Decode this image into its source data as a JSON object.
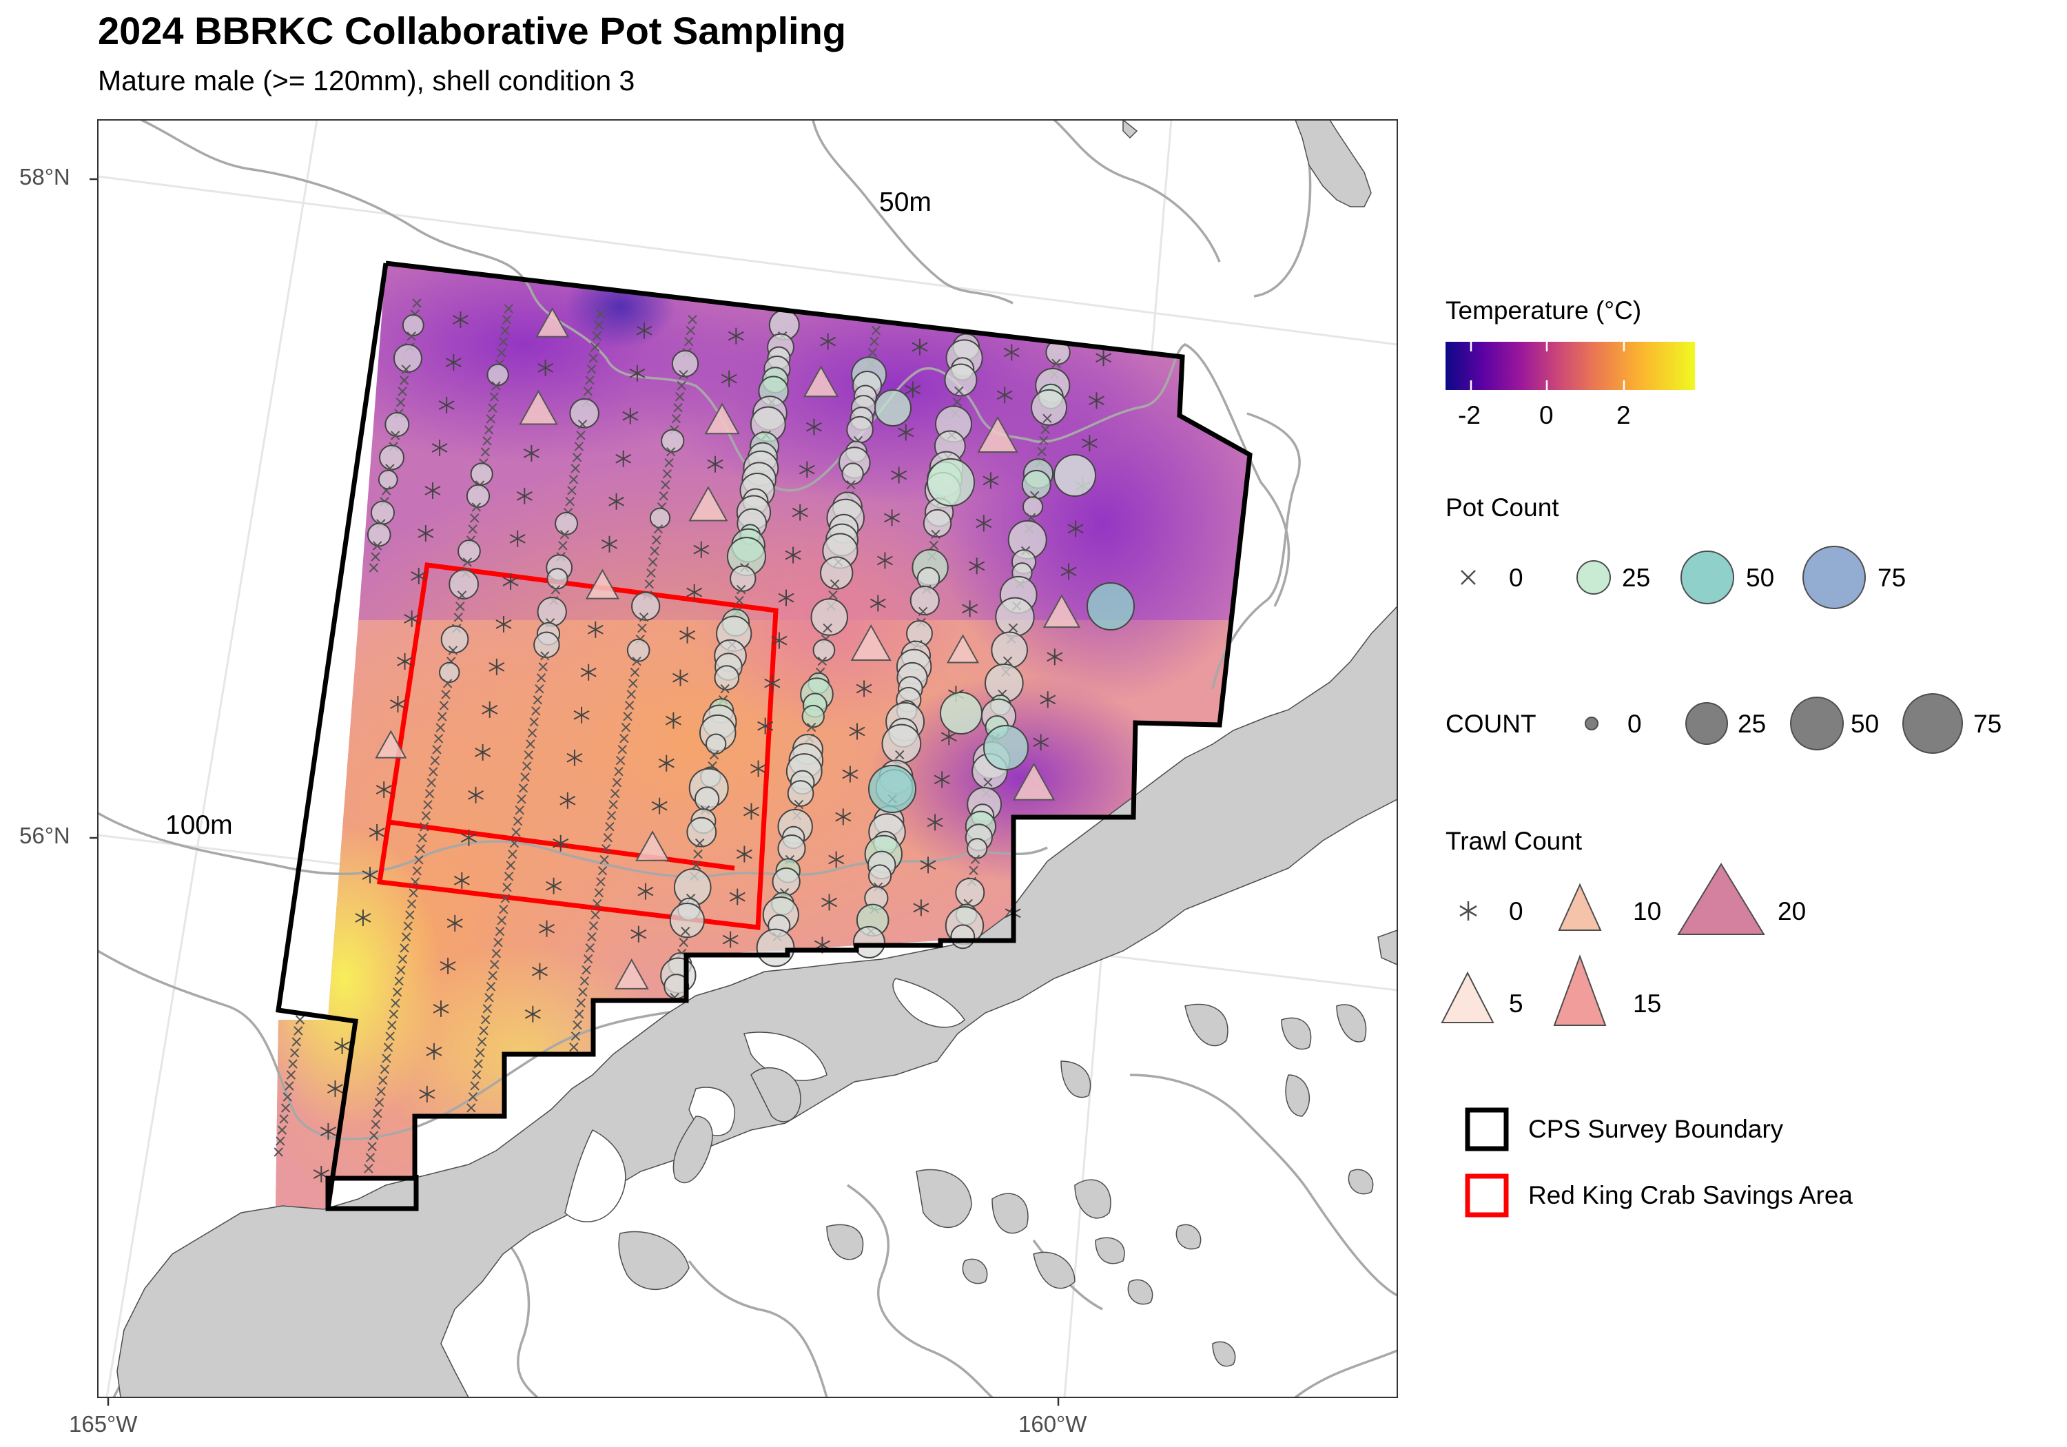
{
  "title": "2024 BBRKC Collaborative Pot Sampling",
  "subtitle": "Mature male (>= 120mm), shell condition 3",
  "map": {
    "lat_ticks": [
      "58°N",
      "56°N"
    ],
    "lon_ticks": [
      "165°W",
      "160°W"
    ],
    "depth_labels": [
      "50m",
      "100m"
    ],
    "colors": {
      "land": "#cccccc",
      "contour": "#a8a8a8",
      "graticule": "#e6e6e6",
      "cps_boundary": "#000000",
      "savings_area": "#ff0000"
    }
  },
  "legend": {
    "temperature": {
      "title": "Temperature (°C)",
      "ticks": [
        "-2",
        "0",
        "2"
      ],
      "palette": "plasma"
    },
    "pot_count": {
      "title": "Pot Count",
      "items": [
        {
          "label": "0",
          "shape": "cross"
        },
        {
          "label": "25",
          "color": "#c9ead3"
        },
        {
          "label": "50",
          "color": "#8fd0cb"
        },
        {
          "label": "75",
          "color": "#93acd1"
        }
      ]
    },
    "count": {
      "title": "COUNT",
      "items": [
        {
          "label": "0"
        },
        {
          "label": "25"
        },
        {
          "label": "50"
        },
        {
          "label": "75"
        }
      ]
    },
    "trawl_count": {
      "title": "Trawl Count",
      "items": [
        {
          "label": "0",
          "shape": "asterisk"
        },
        {
          "label": "10",
          "color": "#f5c3aa"
        },
        {
          "label": "20",
          "color": "#d4809f"
        },
        {
          "label": "5",
          "color": "#fbe5dc"
        },
        {
          "label": "15",
          "color": "#f19d9b"
        }
      ]
    },
    "boundaries": [
      {
        "label": "CPS Survey Boundary",
        "color": "#000000"
      },
      {
        "label": "Red King Crab Savings Area",
        "color": "#ff0000"
      }
    ]
  }
}
